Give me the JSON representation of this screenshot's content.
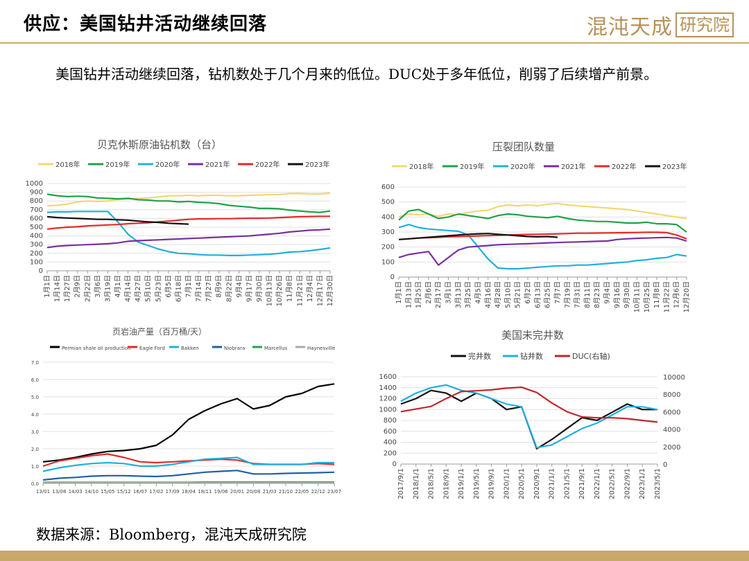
{
  "header": {
    "title": "供应：美国钻井活动继续回落",
    "logo_text": "混沌天成",
    "logo_box": "研究院"
  },
  "intro": "美国钻井活动继续回落，钻机数处于几个月来的低位。DUC处于多年低位，削弱了后续增产前景。",
  "source": "数据来源：Bloomberg，混沌天成研究院",
  "colors": {
    "gold": "#c9a96b"
  },
  "chart_data": [
    {
      "type": "line",
      "title": "贝克休斯原油钻机数（台）",
      "ylim": [
        0,
        1000
      ],
      "yticks": [
        "0",
        "100",
        "200",
        "300",
        "400",
        "500",
        "600",
        "700",
        "800",
        "900",
        "1000"
      ],
      "xticks": [
        "1月1日",
        "1月14日",
        "1月27日",
        "2月9日",
        "2月22日",
        "3月6日",
        "3月19日",
        "4月1日",
        "4月14日",
        "4月27日",
        "5月10日",
        "5月23日",
        "6月5日",
        "6月18日",
        "7月1日",
        "7月14日",
        "7月27日",
        "8月9日",
        "8月22日",
        "9月4日",
        "9月17日",
        "9月30日",
        "10月13日",
        "10月26日",
        "11月8日",
        "11月21日",
        "12月4日",
        "12月17日",
        "12月30日"
      ],
      "series": [
        {
          "name": "2018年",
          "color": "#f5d76e",
          "values": [
            745,
            750,
            765,
            790,
            800,
            795,
            800,
            815,
            825,
            830,
            835,
            845,
            860,
            860,
            865,
            860,
            865,
            865,
            860,
            860,
            865,
            870,
            873,
            875,
            885,
            885,
            880,
            880,
            890
          ]
        },
        {
          "name": "2019年",
          "color": "#22a04a",
          "values": [
            877,
            860,
            850,
            855,
            850,
            835,
            830,
            825,
            830,
            815,
            810,
            800,
            800,
            790,
            795,
            785,
            780,
            770,
            750,
            740,
            730,
            715,
            715,
            710,
            695,
            685,
            675,
            670,
            685
          ]
        },
        {
          "name": "2020年",
          "color": "#1fb0e0",
          "values": [
            670,
            675,
            675,
            680,
            680,
            680,
            680,
            560,
            420,
            330,
            290,
            250,
            220,
            200,
            195,
            185,
            180,
            180,
            175,
            175,
            180,
            185,
            190,
            200,
            215,
            220,
            230,
            245,
            262
          ]
        },
        {
          "name": "2021年",
          "color": "#7a2f9e",
          "values": [
            267,
            282,
            290,
            295,
            300,
            305,
            310,
            320,
            338,
            345,
            350,
            355,
            360,
            365,
            370,
            375,
            380,
            385,
            390,
            395,
            400,
            410,
            420,
            430,
            445,
            455,
            465,
            470,
            478
          ]
        },
        {
          "name": "2022年",
          "color": "#e32a2a",
          "values": [
            478,
            490,
            500,
            505,
            515,
            520,
            525,
            530,
            540,
            545,
            550,
            560,
            570,
            580,
            590,
            595,
            595,
            598,
            598,
            600,
            602,
            602,
            605,
            610,
            615,
            620,
            622,
            625,
            625
          ]
        },
        {
          "name": "2023年",
          "color": "#111111",
          "values": [
            620,
            610,
            605,
            600,
            595,
            590,
            590,
            585,
            580,
            570,
            560,
            555,
            545,
            540,
            535,
            null,
            null,
            null,
            null,
            null,
            null,
            null,
            null,
            null,
            null,
            null,
            null,
            null,
            null
          ]
        }
      ]
    },
    {
      "type": "line",
      "title": "压裂团队数量",
      "ylim": [
        0,
        600
      ],
      "yticks": [
        "0",
        "100",
        "200",
        "300",
        "400",
        "500",
        "600"
      ],
      "xticks": [
        "1月1日",
        "1月13日",
        "1月25日",
        "2月6日",
        "2月17日",
        "3月1日",
        "3月13日",
        "3月25日",
        "4月5日",
        "4月16日",
        "4月28日",
        "5月10日",
        "5月21日",
        "6月2日",
        "6月13日",
        "6月25日",
        "7月7日",
        "7月19日",
        "7月31日",
        "8月11日",
        "8月23日",
        "9月4日",
        "9月16日",
        "9月30日",
        "10月11日",
        "10月25日",
        "11月8日",
        "11月22日",
        "12月6日",
        "12月20日"
      ],
      "series": [
        {
          "name": "2018年",
          "color": "#f5d76e",
          "values": [
            400,
            420,
            415,
            420,
            405,
            420,
            415,
            430,
            440,
            445,
            470,
            480,
            475,
            480,
            475,
            485,
            490,
            480,
            475,
            470,
            465,
            460,
            455,
            450,
            440,
            430,
            420,
            410,
            400,
            390
          ]
        },
        {
          "name": "2019年",
          "color": "#22a04a",
          "values": [
            380,
            440,
            450,
            420,
            390,
            400,
            420,
            410,
            400,
            390,
            410,
            420,
            415,
            405,
            400,
            395,
            405,
            390,
            380,
            375,
            370,
            370,
            365,
            360,
            360,
            365,
            355,
            355,
            350,
            300
          ]
        },
        {
          "name": "2020年",
          "color": "#1fb0e0",
          "values": [
            330,
            350,
            330,
            320,
            315,
            310,
            305,
            280,
            200,
            120,
            60,
            55,
            55,
            60,
            65,
            70,
            75,
            75,
            80,
            80,
            85,
            90,
            95,
            100,
            110,
            115,
            125,
            130,
            150,
            140
          ]
        },
        {
          "name": "2021年",
          "color": "#7a2f9e",
          "values": [
            130,
            150,
            160,
            170,
            80,
            130,
            180,
            200,
            205,
            210,
            215,
            218,
            220,
            222,
            225,
            228,
            230,
            232,
            234,
            236,
            238,
            240,
            250,
            255,
            258,
            260,
            262,
            264,
            260,
            240
          ]
        },
        {
          "name": "2022年",
          "color": "#e32a2a",
          "values": [
            250,
            255,
            260,
            262,
            265,
            268,
            270,
            272,
            274,
            276,
            278,
            280,
            282,
            284,
            285,
            286,
            288,
            290,
            292,
            292,
            293,
            294,
            295,
            296,
            297,
            298,
            298,
            296,
            280,
            255
          ]
        },
        {
          "name": "2023年",
          "color": "#111111",
          "values": [
            250,
            255,
            260,
            265,
            270,
            275,
            280,
            285,
            288,
            290,
            285,
            280,
            275,
            270,
            268,
            270,
            265,
            null,
            null,
            null,
            null,
            null,
            null,
            null,
            null,
            null,
            null,
            null,
            null,
            null
          ]
        }
      ]
    },
    {
      "type": "line",
      "title": "页岩油产量（百万桶/天）",
      "ylim": [
        0,
        7
      ],
      "yticks": [
        "0.0",
        "1.0",
        "2.0",
        "3.0",
        "4.0",
        "5.0",
        "6.0",
        "7.0"
      ],
      "xticks": [
        "13/01",
        "13/08",
        "14/03",
        "14/10",
        "15/05",
        "15/12",
        "16/07",
        "17/02",
        "17/09",
        "18/04",
        "18/11",
        "19/06",
        "20/01",
        "20/08",
        "21/03",
        "21/10",
        "22/05",
        "22/12",
        "23/07"
      ],
      "series": [
        {
          "name": "Permian shale oil production",
          "color": "#000000",
          "values": [
            1.25,
            1.35,
            1.5,
            1.7,
            1.85,
            1.9,
            2.0,
            2.2,
            2.8,
            3.7,
            4.2,
            4.6,
            4.9,
            4.3,
            4.5,
            5.0,
            5.2,
            5.6,
            5.75
          ]
        },
        {
          "name": "Eagle Ford",
          "color": "#e32a2a",
          "values": [
            1.0,
            1.3,
            1.45,
            1.6,
            1.7,
            1.5,
            1.25,
            1.2,
            1.25,
            1.3,
            1.35,
            1.4,
            1.35,
            1.15,
            1.1,
            1.1,
            1.1,
            1.15,
            1.1
          ]
        },
        {
          "name": "Bakken",
          "color": "#1fb0e0",
          "values": [
            0.7,
            0.9,
            1.05,
            1.15,
            1.2,
            1.15,
            1.0,
            1.0,
            1.1,
            1.25,
            1.4,
            1.45,
            1.5,
            1.1,
            1.1,
            1.1,
            1.1,
            1.2,
            1.2
          ]
        },
        {
          "name": "Niobrara",
          "color": "#1f5fa8",
          "values": [
            0.2,
            0.3,
            0.35,
            0.42,
            0.45,
            0.45,
            0.42,
            0.4,
            0.45,
            0.55,
            0.65,
            0.7,
            0.75,
            0.55,
            0.55,
            0.58,
            0.6,
            0.62,
            0.65
          ]
        },
        {
          "name": "Marcellus",
          "color": "#22a04a",
          "values": [
            0.07,
            0.07,
            0.07,
            0.07,
            0.07,
            0.07,
            0.07,
            0.07,
            0.07,
            0.07,
            0.08,
            0.08,
            0.08,
            0.08,
            0.08,
            0.08,
            0.08,
            0.08,
            0.08
          ]
        },
        {
          "name": "Haynesville",
          "color": "#aaaaaa",
          "values": [
            0.05,
            0.05,
            0.05,
            0.05,
            0.05,
            0.05,
            0.05,
            0.05,
            0.05,
            0.05,
            0.05,
            0.05,
            0.05,
            0.05,
            0.05,
            0.05,
            0.05,
            0.05,
            0.05
          ]
        }
      ]
    },
    {
      "type": "line",
      "title": "美国未完井数",
      "ylim": [
        0,
        1600
      ],
      "ylim_right": [
        0,
        10000
      ],
      "yticks": [
        "0",
        "200",
        "400",
        "600",
        "800",
        "1000",
        "1200",
        "1400",
        "1600"
      ],
      "yticks_right": [
        "0",
        "2000",
        "4000",
        "6000",
        "8000",
        "10000"
      ],
      "xticks": [
        "2017/9/1",
        "2018/1/1",
        "2018/5/1",
        "2018/9/1",
        "2019/1/1",
        "2019/5/1",
        "2019/9/1",
        "2020/1/1",
        "2020/5/1",
        "2020/9/1",
        "2021/1/1",
        "2021/5/1",
        "2021/9/1",
        "2022/1/1",
        "2022/5/1",
        "2022/9/1",
        "2023/1/1",
        "2023/5/1"
      ],
      "series": [
        {
          "name": "完井数",
          "color": "#111111",
          "axis": "left",
          "values": [
            1100,
            1200,
            1350,
            1300,
            1150,
            1300,
            1200,
            1000,
            1050,
            280,
            450,
            650,
            850,
            800,
            950,
            1100,
            1000,
            1000
          ]
        },
        {
          "name": "钻井数",
          "color": "#1fb0e0",
          "axis": "left",
          "values": [
            1150,
            1300,
            1400,
            1450,
            1350,
            1300,
            1200,
            1100,
            1050,
            300,
            350,
            500,
            650,
            750,
            900,
            1050,
            1050,
            1000
          ]
        },
        {
          "name": "DUC(右轴)",
          "color": "#c0282d",
          "axis": "right",
          "values": [
            6000,
            6300,
            6600,
            7500,
            8300,
            8400,
            8500,
            8700,
            8800,
            8200,
            7000,
            6000,
            5400,
            5300,
            5300,
            5200,
            5000,
            4800
          ]
        }
      ]
    }
  ]
}
